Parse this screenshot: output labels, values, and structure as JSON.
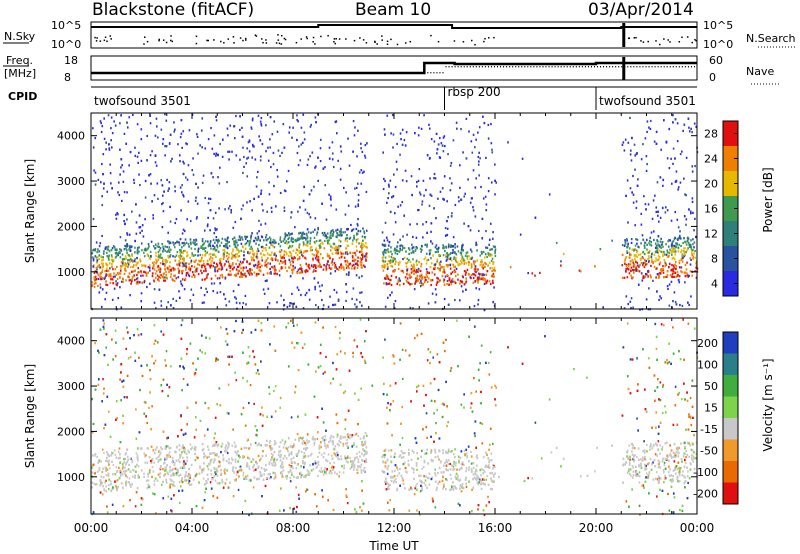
{
  "header": {
    "station": "Blackstone (fitACF)",
    "beam": "Beam 10",
    "date": "03/Apr/2014"
  },
  "top_panels": {
    "nsky_label": "N.Sky",
    "nsky_ticks": [
      "10^5",
      "10^0"
    ],
    "nsearch_label": "N.Search",
    "nsearch_ticks": [
      "10^5",
      "10^0"
    ],
    "freq_label": "Freq.",
    "freq_unit": "[MHz]",
    "freq_ticks": [
      "18",
      "8"
    ],
    "nave_label": "Nave",
    "nave_ticks": [
      "60",
      "0"
    ],
    "cpid_label": "CPID",
    "cpid_segments": [
      {
        "name": "twofsound 3501",
        "start_h": 0,
        "end_h": 14.0
      },
      {
        "name": "rbsp 200",
        "start_h": 14.0,
        "end_h": 20.0
      },
      {
        "name": "twofsound 3501",
        "start_h": 20.0,
        "end_h": 24
      }
    ]
  },
  "chart_data": [
    {
      "type": "heatmap",
      "name": "power",
      "ylabel": "Slant Range [km]",
      "xlabel": "Time UT",
      "x_range_hours": [
        0,
        24
      ],
      "x_ticks": [
        "00:00",
        "04:00",
        "08:00",
        "12:00",
        "16:00",
        "20:00",
        "00:00"
      ],
      "ylim": [
        180,
        4500
      ],
      "y_ticks": [
        1000,
        2000,
        3000,
        4000
      ],
      "colorbar_label": "Power [dB]",
      "colorbar_ticks": [
        "4",
        "8",
        "12",
        "16",
        "20",
        "24",
        "28"
      ],
      "colorbar_colors": [
        "#2a2ae0",
        "#29539f",
        "#2f7f7a",
        "#3f9a4f",
        "#e6b800",
        "#ef7f00",
        "#e01010"
      ],
      "data_gaps_hours": [
        [
          11.0,
          11.5
        ],
        [
          16.0,
          21.0
        ]
      ]
    },
    {
      "type": "heatmap",
      "name": "velocity",
      "ylabel": "Slant Range [km]",
      "xlabel": "Time UT",
      "x_range_hours": [
        0,
        24
      ],
      "x_ticks": [
        "00:00",
        "04:00",
        "08:00",
        "12:00",
        "16:00",
        "20:00",
        "00:00"
      ],
      "ylim": [
        180,
        4500
      ],
      "y_ticks": [
        1000,
        2000,
        3000,
        4000
      ],
      "colorbar_label": "Velocity [m s⁻¹]",
      "colorbar_ticks": [
        "200",
        "100",
        "50",
        "15",
        "-15",
        "-50",
        "-100",
        "-200"
      ],
      "colorbar_colors": [
        "#1f3fbf",
        "#2a7f8a",
        "#3fae3f",
        "#7ed34a",
        "#c8c8c8",
        "#ef9a2a",
        "#e86a00",
        "#e01010"
      ]
    }
  ],
  "xlabel": "Time UT"
}
